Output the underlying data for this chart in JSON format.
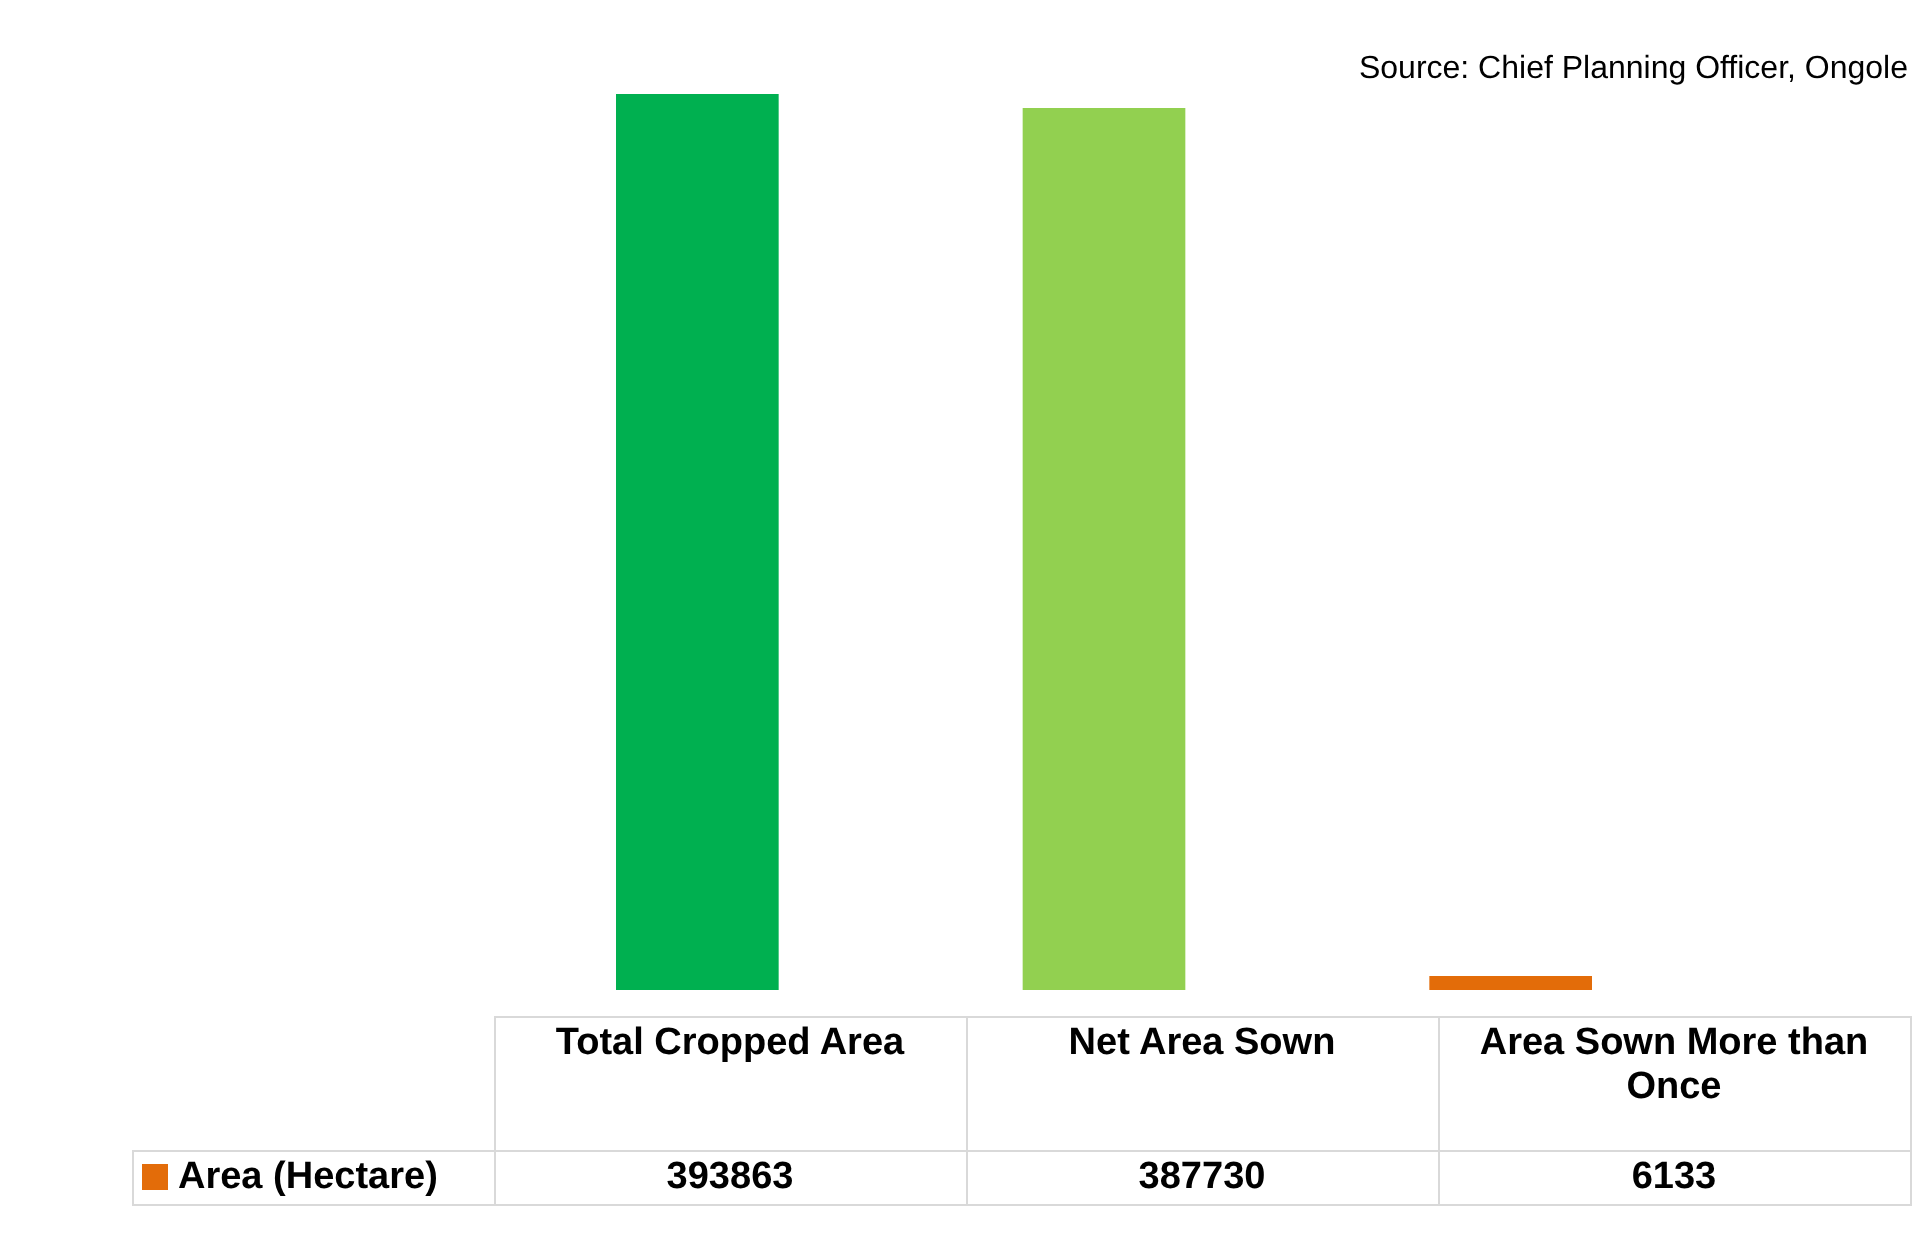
{
  "chart_data": {
    "type": "bar",
    "categories": [
      "Total Cropped Area",
      "Net Area Sown",
      "Area Sown More than Once"
    ],
    "series": [
      {
        "name": "Area (Hectare)",
        "color": "#e36c09",
        "colors": [
          "#00b050",
          "#92d050",
          "#e36c09"
        ],
        "values": [
          393863,
          387730,
          6133
        ]
      }
    ],
    "data_labels": true,
    "legend": "bottom",
    "annotations": [
      "Source: Chief Planning Officer, Ongole"
    ]
  }
}
